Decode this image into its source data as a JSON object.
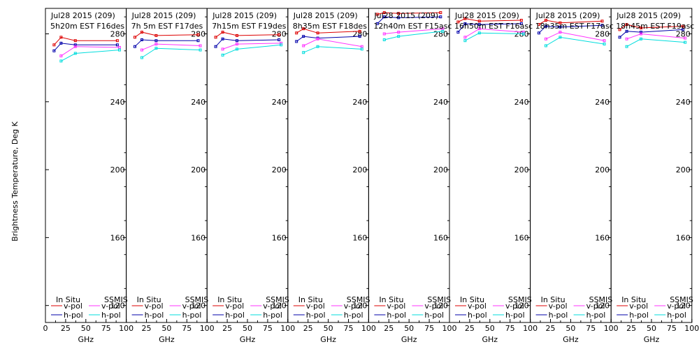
{
  "figure": {
    "ylabel": "Brightness Temperature, Deg K",
    "legend": {
      "insitu_header": "In Situ",
      "ssmis_header": "SSMIS",
      "vpol": "v-pol",
      "hpol": "h-pol"
    },
    "colors": {
      "insitu_v": "#dd0000",
      "insitu_h": "#0000aa",
      "ssmis_v": "#ff33ff",
      "ssmis_h": "#00dddd",
      "frame": "#000000",
      "background": "#ffffff"
    }
  },
  "chart_data": [
    {
      "type": "line",
      "title": "Jul28 2015 (209)",
      "subtitle": "5h20m  EST F16des",
      "xlabel": "GHz",
      "xlim": [
        0,
        100
      ],
      "ylim": [
        110,
        295
      ],
      "xticks": [
        0,
        25,
        50,
        75,
        100
      ],
      "xtick_labels": [
        "0",
        "25",
        "50",
        "75",
        "100"
      ],
      "yticks": [
        120,
        160,
        200,
        240,
        280
      ],
      "first_xtick_label": "0",
      "grid": false,
      "legend_position": "bottom",
      "series": [
        {
          "name": "In Situ v-pol",
          "x": [
            10.7,
            19.35,
            37,
            89
          ],
          "y": [
            273.5,
            278,
            276,
            276
          ]
        },
        {
          "name": "In Situ h-pol",
          "x": [
            10.7,
            19.35,
            37,
            89
          ],
          "y": [
            270,
            274.5,
            273.5,
            273.5
          ]
        },
        {
          "name": "SSMIS v-pol",
          "x": [
            19.35,
            37,
            91.65
          ],
          "y": [
            267,
            272.5,
            272
          ]
        },
        {
          "name": "SSMIS h-pol",
          "x": [
            19.35,
            37,
            91.65
          ],
          "y": [
            264,
            268.5,
            270.5
          ]
        }
      ]
    },
    {
      "type": "line",
      "title": "Jul28 2015 (209)",
      "subtitle": "7h 5m  EST F17des",
      "xlabel": "GHz",
      "xlim": [
        0,
        100
      ],
      "ylim": [
        110,
        295
      ],
      "xticks": [
        0,
        25,
        50,
        75,
        100
      ],
      "xtick_labels": [
        "0",
        "25",
        "50",
        "75",
        "100"
      ],
      "yticks": [
        120,
        160,
        200,
        240,
        280
      ],
      "first_xtick_label": "",
      "grid": false,
      "legend_position": "bottom",
      "series": [
        {
          "name": "In Situ v-pol",
          "x": [
            10.7,
            19.35,
            37,
            89
          ],
          "y": [
            278,
            281,
            279,
            279.5
          ]
        },
        {
          "name": "In Situ h-pol",
          "x": [
            10.7,
            19.35,
            37,
            89
          ],
          "y": [
            272.5,
            276.5,
            276,
            276
          ]
        },
        {
          "name": "SSMIS v-pol",
          "x": [
            19.35,
            37,
            91.65
          ],
          "y": [
            270.5,
            274,
            273
          ]
        },
        {
          "name": "SSMIS h-pol",
          "x": [
            19.35,
            37,
            91.65
          ],
          "y": [
            266,
            271.5,
            270.5
          ]
        }
      ]
    },
    {
      "type": "line",
      "title": "Jul28 2015 (209)",
      "subtitle": "7h15m  EST F19des",
      "xlabel": "GHz",
      "xlim": [
        0,
        100
      ],
      "ylim": [
        110,
        295
      ],
      "xticks": [
        0,
        25,
        50,
        75,
        100
      ],
      "xtick_labels": [
        "0",
        "25",
        "50",
        "75",
        "100"
      ],
      "yticks": [
        120,
        160,
        200,
        240,
        280
      ],
      "first_xtick_label": "",
      "grid": false,
      "legend_position": "bottom",
      "series": [
        {
          "name": "In Situ v-pol",
          "x": [
            10.7,
            19.35,
            37,
            89
          ],
          "y": [
            278,
            281,
            279,
            279.5
          ]
        },
        {
          "name": "In Situ h-pol",
          "x": [
            10.7,
            19.35,
            37,
            89
          ],
          "y": [
            272.5,
            277,
            276,
            276.5
          ]
        },
        {
          "name": "SSMIS v-pol",
          "x": [
            19.35,
            37,
            91.65
          ],
          "y": [
            271,
            274,
            274.5
          ]
        },
        {
          "name": "SSMIS h-pol",
          "x": [
            19.35,
            37,
            91.65
          ],
          "y": [
            267.5,
            271,
            273.5
          ]
        }
      ]
    },
    {
      "type": "line",
      "title": "Jul28 2015 (209)",
      "subtitle": "8h35m  EST F18des",
      "xlabel": "GHz",
      "xlim": [
        0,
        100
      ],
      "ylim": [
        110,
        295
      ],
      "xticks": [
        0,
        25,
        50,
        75,
        100
      ],
      "xtick_labels": [
        "0",
        "25",
        "50",
        "75",
        "100"
      ],
      "yticks": [
        120,
        160,
        200,
        240,
        280
      ],
      "first_xtick_label": "",
      "grid": false,
      "legend_position": "bottom",
      "series": [
        {
          "name": "In Situ v-pol",
          "x": [
            10.7,
            19.35,
            37,
            89
          ],
          "y": [
            280.5,
            283,
            280.5,
            281.5
          ]
        },
        {
          "name": "In Situ h-pol",
          "x": [
            10.7,
            19.35,
            37,
            89
          ],
          "y": [
            275.5,
            278.5,
            277.5,
            278.5
          ]
        },
        {
          "name": "SSMIS v-pol",
          "x": [
            19.35,
            37,
            91.65
          ],
          "y": [
            273,
            277,
            272.5
          ]
        },
        {
          "name": "SSMIS h-pol",
          "x": [
            19.35,
            37,
            91.65
          ],
          "y": [
            269,
            272.5,
            271
          ]
        }
      ]
    },
    {
      "type": "line",
      "title": "Jul28 2015 (209)",
      "subtitle": "12h40m  EST F15asc",
      "xlabel": "GHz",
      "xlim": [
        0,
        100
      ],
      "ylim": [
        110,
        295
      ],
      "xticks": [
        0,
        25,
        50,
        75,
        100
      ],
      "xtick_labels": [
        "0",
        "25",
        "50",
        "75",
        "100"
      ],
      "yticks": [
        120,
        160,
        200,
        240,
        280
      ],
      "first_xtick_label": "",
      "grid": false,
      "legend_position": "bottom",
      "series": [
        {
          "name": "In Situ v-pol",
          "x": [
            10.7,
            19.35,
            37,
            89
          ],
          "y": [
            291.5,
            292.5,
            292,
            292.5
          ]
        },
        {
          "name": "In Situ h-pol",
          "x": [
            10.7,
            19.35,
            37,
            89
          ],
          "y": [
            286,
            290,
            289.5,
            290
          ]
        },
        {
          "name": "SSMIS v-pol",
          "x": [
            19.35,
            37,
            91.65
          ],
          "y": [
            280,
            281,
            283
          ]
        },
        {
          "name": "SSMIS h-pol",
          "x": [
            19.35,
            37,
            91.65
          ],
          "y": [
            276.5,
            278.5,
            281.5
          ]
        }
      ]
    },
    {
      "type": "line",
      "title": "Jul28 2015 (209)",
      "subtitle": "16h50m  EST F16asc",
      "xlabel": "GHz",
      "xlim": [
        0,
        100
      ],
      "ylim": [
        110,
        295
      ],
      "xticks": [
        0,
        25,
        50,
        75,
        100
      ],
      "xtick_labels": [
        "0",
        "25",
        "50",
        "75",
        "100"
      ],
      "yticks": [
        120,
        160,
        200,
        240,
        280
      ],
      "first_xtick_label": "",
      "grid": false,
      "legend_position": "bottom",
      "series": [
        {
          "name": "In Situ v-pol",
          "x": [
            10.7,
            19.35,
            37,
            89
          ],
          "y": [
            287,
            289,
            287.5,
            288
          ]
        },
        {
          "name": "In Situ h-pol",
          "x": [
            10.7,
            19.35,
            37,
            89
          ],
          "y": [
            281,
            286,
            285.5,
            286
          ]
        },
        {
          "name": "SSMIS v-pol",
          "x": [
            19.35,
            37,
            91.65
          ],
          "y": [
            278,
            283,
            281
          ]
        },
        {
          "name": "SSMIS h-pol",
          "x": [
            19.35,
            37,
            91.65
          ],
          "y": [
            276,
            280.5,
            280
          ]
        }
      ]
    },
    {
      "type": "line",
      "title": "Jul28 2015 (209)",
      "subtitle": "18h35m  EST F17asc",
      "xlabel": "GHz",
      "xlim": [
        0,
        100
      ],
      "ylim": [
        110,
        295
      ],
      "xticks": [
        0,
        25,
        50,
        75,
        100
      ],
      "xtick_labels": [
        "0",
        "25",
        "50",
        "75",
        "100"
      ],
      "yticks": [
        120,
        160,
        200,
        240,
        280
      ],
      "first_xtick_label": "",
      "grid": false,
      "legend_position": "bottom",
      "series": [
        {
          "name": "In Situ v-pol",
          "x": [
            10.7,
            19.35,
            37,
            89
          ],
          "y": [
            285.5,
            288,
            286.5,
            287.5
          ]
        },
        {
          "name": "In Situ h-pol",
          "x": [
            10.7,
            19.35,
            37,
            89
          ],
          "y": [
            280.5,
            284.5,
            284,
            285
          ]
        },
        {
          "name": "SSMIS v-pol",
          "x": [
            19.35,
            37,
            91.65
          ],
          "y": [
            277,
            281,
            276
          ]
        },
        {
          "name": "SSMIS h-pol",
          "x": [
            19.35,
            37,
            91.65
          ],
          "y": [
            273,
            278,
            274
          ]
        }
      ]
    },
    {
      "type": "line",
      "title": "Jul28 2015 (209)",
      "subtitle": "18h45m  EST F19asc",
      "xlabel": "GHz",
      "xlim": [
        0,
        100
      ],
      "ylim": [
        110,
        295
      ],
      "xticks": [
        0,
        25,
        50,
        75,
        100
      ],
      "xtick_labels": [
        "0",
        "25",
        "50",
        "75",
        "100"
      ],
      "yticks": [
        120,
        160,
        200,
        240,
        280
      ],
      "first_xtick_label": "",
      "grid": false,
      "legend_position": "bottom",
      "series": [
        {
          "name": "In Situ v-pol",
          "x": [
            10.7,
            19.35,
            37,
            89
          ],
          "y": [
            282.5,
            285.5,
            283.5,
            284.5
          ]
        },
        {
          "name": "In Situ h-pol",
          "x": [
            10.7,
            19.35,
            37,
            89
          ],
          "y": [
            278,
            281.5,
            281,
            282.5
          ]
        },
        {
          "name": "SSMIS v-pol",
          "x": [
            19.35,
            37,
            91.65
          ],
          "y": [
            277,
            280,
            277.5
          ]
        },
        {
          "name": "SSMIS h-pol",
          "x": [
            19.35,
            37,
            91.65
          ],
          "y": [
            272.5,
            277,
            275
          ]
        }
      ]
    }
  ]
}
